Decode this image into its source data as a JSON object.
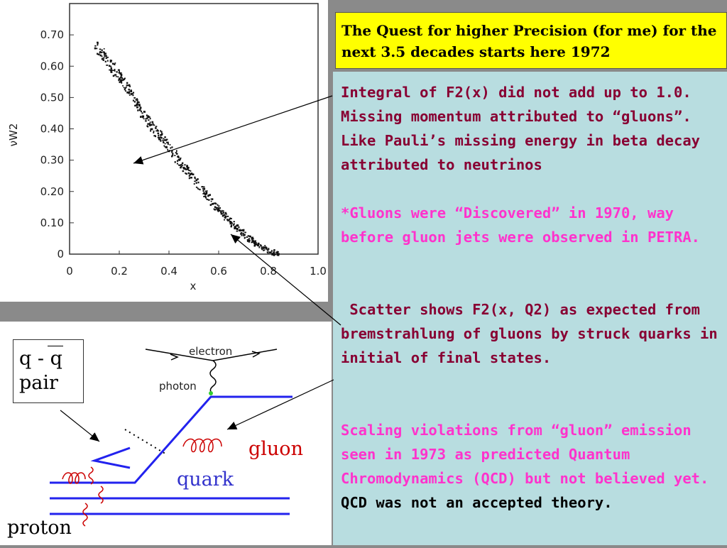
{
  "title": "The Quest for higher Precision (for me) for the next 3.5 decades starts here 1972",
  "paragraphs": {
    "p1": "Integral of F2(x) did not add up to 1.0.   Missing momentum attributed to “gluons”. Like Pauli’s missing energy in beta decay attributed to neutrinos",
    "p2": "*Gluons were “Discovered” in 1970, way before gluon jets were observed in PETRA.",
    "p3": " Scatter shows F2(x, Q2) as expected from bremstrahlung of gluons by struck quarks in initial of final states.",
    "p4a": "Scaling violations from “gluon” emission seen in 1973 as predicted Quantum Chromodynamics (QCD) but not believed yet.",
    "p4b": "  QCD was not an accepted theory."
  },
  "colors": {
    "maroon": "#880033",
    "magenta": "#ff33cc",
    "title_bg": "#ffff00",
    "panel_bg": "#b8dde0",
    "gluon": "#cc0000",
    "quark": "#3333cc"
  },
  "chart_data": {
    "type": "scatter",
    "ylabel": "νW2",
    "xlabel": "x",
    "x_ticks": [
      "0",
      "0.2",
      "0.4",
      "0.6",
      "0.8",
      "1.0"
    ],
    "y_ticks": [
      "0",
      "0.10",
      "0.20",
      "0.30",
      "0.40",
      "0.50",
      "0.60",
      "0.70"
    ],
    "xlim": [
      0,
      1.0
    ],
    "ylim": [
      0,
      0.8
    ],
    "trend": [
      [
        0.1,
        0.67
      ],
      [
        0.15,
        0.62
      ],
      [
        0.2,
        0.57
      ],
      [
        0.25,
        0.51
      ],
      [
        0.3,
        0.44
      ],
      [
        0.35,
        0.39
      ],
      [
        0.4,
        0.34
      ],
      [
        0.45,
        0.29
      ],
      [
        0.5,
        0.24
      ],
      [
        0.55,
        0.19
      ],
      [
        0.6,
        0.145
      ],
      [
        0.65,
        0.1
      ],
      [
        0.7,
        0.065
      ],
      [
        0.75,
        0.035
      ],
      [
        0.8,
        0.012
      ],
      [
        0.84,
        0.003
      ]
    ]
  },
  "diagram": {
    "electron_label": "electron",
    "photon_label": "photon",
    "qq_line1": "q - q",
    "qq_line2": "pair",
    "gluon_label": "gluon",
    "quark_label": "quark",
    "proton_label": "proton"
  }
}
